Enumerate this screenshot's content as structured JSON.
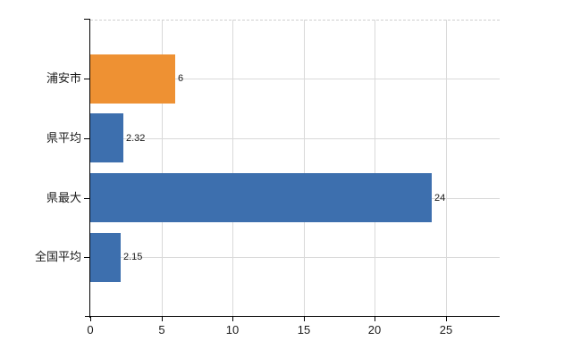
{
  "chart_data": {
    "type": "bar",
    "orientation": "horizontal",
    "title": "",
    "xlabel": "",
    "ylabel": "",
    "categories": [
      "浦安市",
      "県平均",
      "県最大",
      "全国平均"
    ],
    "values": [
      6,
      2.32,
      24,
      2.15
    ],
    "value_labels": [
      "6",
      "2.32",
      "24",
      "2.15"
    ],
    "bar_colors": [
      "#ee9133",
      "#3d6fae",
      "#3d6fae",
      "#3d6fae"
    ],
    "x_tick_labels": [
      "0",
      "5",
      "10",
      "15",
      "20",
      "25"
    ],
    "x_tick_values": [
      0,
      5,
      10,
      15,
      20,
      25
    ],
    "xlim": [
      0,
      28.8
    ],
    "grid": true,
    "legend": false,
    "colors": {
      "bar_blue": "#3d6fae",
      "bar_orange": "#ee9133",
      "axis": "#000000",
      "gridline": "#d9d9d9",
      "top_border": "#cfcfcf",
      "text": "#1a1a1a",
      "background": "#ffffff"
    }
  }
}
